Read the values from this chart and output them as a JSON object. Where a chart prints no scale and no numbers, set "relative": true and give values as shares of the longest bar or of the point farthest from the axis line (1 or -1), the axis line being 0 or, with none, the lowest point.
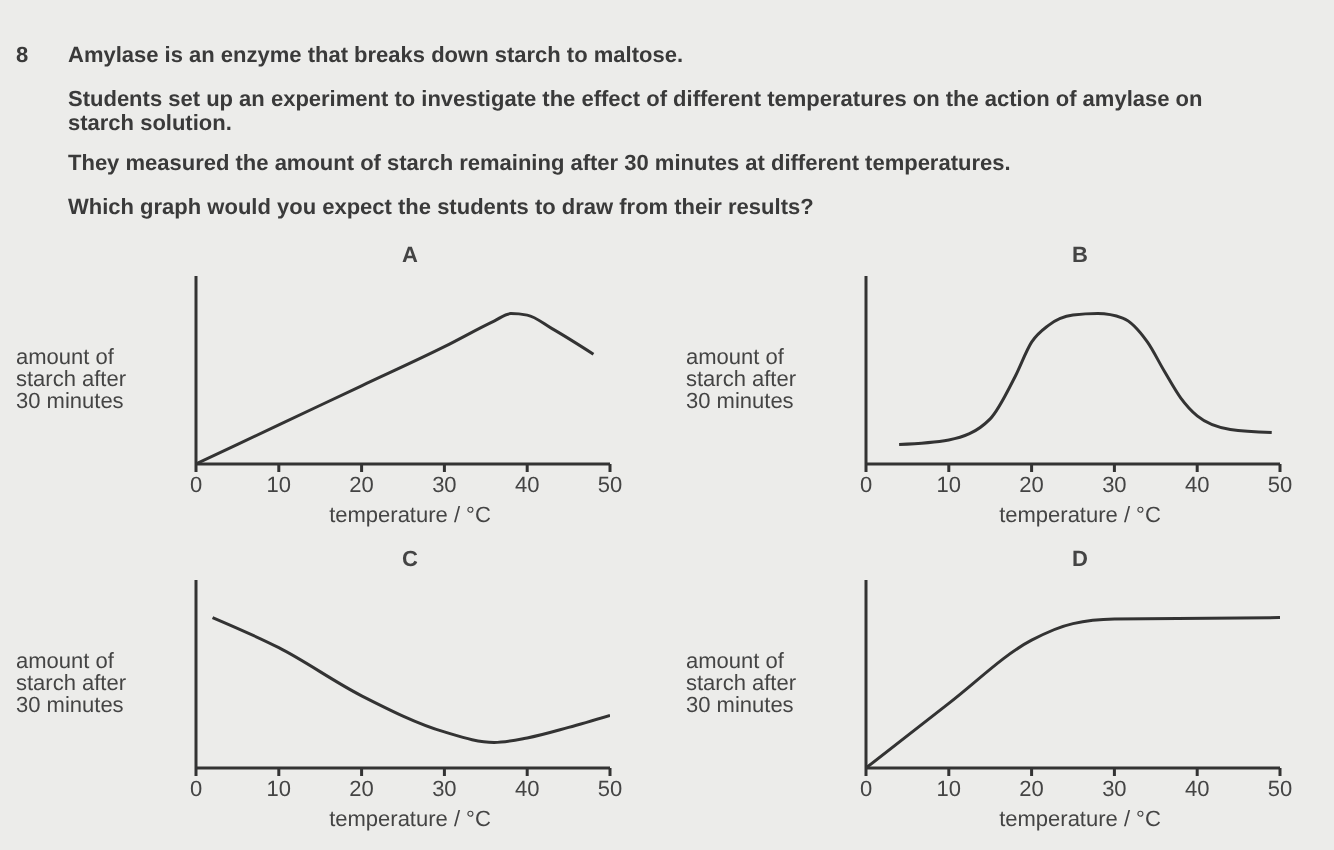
{
  "chart_data": [
    {
      "type": "other",
      "annotations": [
        "8",
        "Amylase is an enzyme that breaks down starch to maltose.",
        "Students set up an experiment to investigate the effect of different temperatures on the action of amylase on starch solution.",
        "They measured the amount of starch remaining after 30 minutes at different temperatures.",
        "Which graph would you expect the students to draw from their results?"
      ]
    },
    {
      "type": "line",
      "title": "A",
      "xlabel": "temperature / °C",
      "ylabel": "amount of starch after 30 minutes",
      "relative": true,
      "xlim": [
        0,
        50
      ],
      "xticks": [
        0,
        10,
        20,
        30,
        40,
        50
      ],
      "series": [
        {
          "color": "#333333",
          "x": [
            0,
            10,
            20,
            30,
            36,
            38,
            40,
            43,
            48
          ],
          "values": [
            0,
            0.26,
            0.52,
            0.78,
            0.95,
            1,
            0.99,
            0.9,
            0.73
          ]
        }
      ]
    },
    {
      "type": "line",
      "title": "B",
      "xlabel": "temperature / °C",
      "ylabel": "amount of starch after 30 minutes",
      "relative": true,
      "xlim": [
        0,
        50
      ],
      "xticks": [
        0,
        10,
        20,
        30,
        40,
        50
      ],
      "series": [
        {
          "color": "#333333",
          "x": [
            4,
            10,
            15,
            18,
            20,
            22,
            25,
            28,
            31,
            34,
            36,
            38,
            40,
            44,
            49
          ],
          "values": [
            0.13,
            0.16,
            0.3,
            0.58,
            0.81,
            0.92,
            0.99,
            1,
            0.97,
            0.81,
            0.62,
            0.44,
            0.32,
            0.23,
            0.21
          ]
        }
      ]
    },
    {
      "type": "line",
      "title": "C",
      "xlabel": "temperature / °C",
      "ylabel": "amount of starch after 30 minutes",
      "relative": true,
      "xlim": [
        0,
        50
      ],
      "xticks": [
        0,
        10,
        20,
        30,
        40,
        50
      ],
      "series": [
        {
          "color": "#333333",
          "x": [
            2,
            10,
            20,
            30,
            36,
            40,
            45,
            50
          ],
          "values": [
            1,
            0.8,
            0.48,
            0.24,
            0.17,
            0.2,
            0.27,
            0.35
          ]
        }
      ]
    },
    {
      "type": "line",
      "title": "D",
      "xlabel": "temperature / °C",
      "ylabel": "amount of starch after 30 minutes",
      "relative": true,
      "xlim": [
        0,
        50
      ],
      "xticks": [
        0,
        10,
        20,
        30,
        40,
        50
      ],
      "series": [
        {
          "color": "#333333",
          "x": [
            0,
            10,
            20,
            25,
            30,
            50
          ],
          "values": [
            0,
            0.43,
            0.85,
            0.96,
            0.99,
            1
          ]
        }
      ]
    }
  ]
}
